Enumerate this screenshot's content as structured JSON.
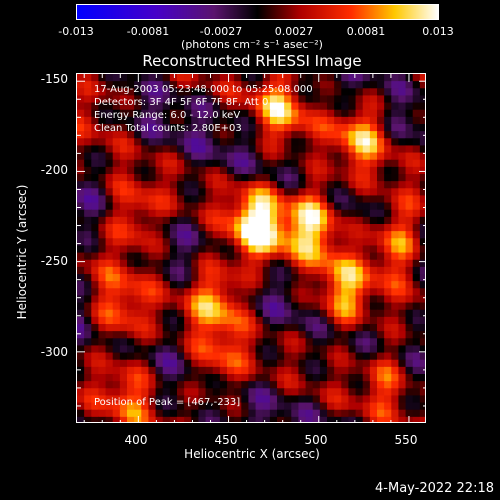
{
  "colorbar": {
    "ticks": [
      "-0.013",
      "-0.0081",
      "-0.0027",
      "0.0027",
      "0.0081",
      "0.013"
    ],
    "range": [
      -0.013,
      0.013
    ],
    "units": "(photons cm⁻² s⁻¹ asec⁻²)"
  },
  "header": {
    "title": "Reconstructed RHESSI Image"
  },
  "info": {
    "time": "17-Aug-2003 05:23:48.000 to 05:25:08.000",
    "detectors": "Detectors: 3F 4F 5F 6F 7F 8F, Att 0",
    "energy": "Energy Range: 6.0 - 12.0 keV",
    "clean": "Clean     Total counts: 2.80E+03",
    "peak": "Position of Peak = [467,-233]"
  },
  "axes": {
    "xlabel": "Heliocentric X (arcsec)",
    "ylabel": "Heliocentric Y (arcsec)",
    "xticks": [
      "400",
      "450",
      "500",
      "550"
    ],
    "yticks": [
      "-150",
      "-200",
      "-250",
      "-300"
    ]
  },
  "footer": {
    "timestamp": "4-May-2022 22:18"
  },
  "colors": {
    "background": "#000000",
    "foreground": "#ffffff",
    "colormap": "rhessi-blue-purple-red-yellow-white"
  },
  "chart_data": {
    "type": "heatmap",
    "title": "Reconstructed RHESSI Image",
    "xlabel": "Heliocentric X (arcsec)",
    "ylabel": "Heliocentric Y (arcsec)",
    "xlim": [
      366,
      560
    ],
    "ylim": [
      -340,
      -146
    ],
    "clim": [
      -0.013,
      0.013
    ],
    "pixel_size_arcsec": 4,
    "peak": {
      "x": 467,
      "y": -233
    },
    "sources": [
      {
        "x": 467,
        "y": -230,
        "amp": 0.013
      },
      {
        "x": 498,
        "y": -228,
        "amp": 0.011
      },
      {
        "x": 545,
        "y": -238,
        "amp": 0.009
      },
      {
        "x": 398,
        "y": -228,
        "amp": 0.008
      },
      {
        "x": 480,
        "y": -165,
        "amp": 0.008
      },
      {
        "x": 525,
        "y": -180,
        "amp": 0.008
      },
      {
        "x": 445,
        "y": -270,
        "amp": 0.009
      },
      {
        "x": 390,
        "y": -280,
        "amp": 0.007
      },
      {
        "x": 515,
        "y": -270,
        "amp": 0.009
      },
      {
        "x": 445,
        "y": -310,
        "amp": 0.006
      },
      {
        "x": 395,
        "y": -325,
        "amp": 0.006
      },
      {
        "x": 540,
        "y": -315,
        "amp": 0.006
      },
      {
        "x": 378,
        "y": -155,
        "amp": 0.005
      }
    ]
  }
}
